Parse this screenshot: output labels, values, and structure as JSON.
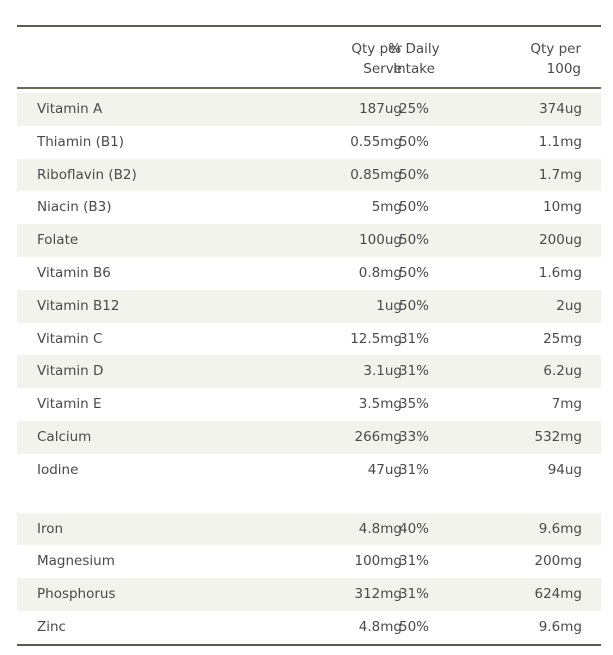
{
  "header": {
    "qty_serve_line1": "Qty per",
    "qty_serve_line2": "Serve",
    "daily_line1": "% Daily",
    "daily_line2": "Intake",
    "qty_100_line1": "Qty per",
    "qty_100_line2": "100g"
  },
  "group1": [
    {
      "name": "Vitamin A",
      "serve": "187ug",
      "pct": "25%",
      "per100": "374ug"
    },
    {
      "name": "Thiamin (B1)",
      "serve": "0.55mg",
      "pct": "50%",
      "per100": "1.1mg"
    },
    {
      "name": "Riboflavin (B2)",
      "serve": "0.85mg",
      "pct": "50%",
      "per100": "1.7mg"
    },
    {
      "name": "Niacin (B3)",
      "serve": "5mg",
      "pct": "50%",
      "per100": "10mg"
    },
    {
      "name": "Folate",
      "serve": "100ug",
      "pct": "50%",
      "per100": "200ug"
    },
    {
      "name": "Vitamin B6",
      "serve": "0.8mg",
      "pct": "50%",
      "per100": "1.6mg"
    },
    {
      "name": "Vitamin B12",
      "serve": "1ug",
      "pct": "50%",
      "per100": "2ug"
    },
    {
      "name": "Vitamin C",
      "serve": "12.5mg",
      "pct": "31%",
      "per100": "25mg"
    },
    {
      "name": "Vitamin D",
      "serve": "3.1ug",
      "pct": "31%",
      "per100": "6.2ug"
    },
    {
      "name": "Vitamin E",
      "serve": "3.5mg",
      "pct": "35%",
      "per100": "7mg"
    },
    {
      "name": "Calcium",
      "serve": "266mg",
      "pct": "33%",
      "per100": "532mg"
    },
    {
      "name": "Iodine",
      "serve": "47ug",
      "pct": "31%",
      "per100": "94ug"
    }
  ],
  "group2": [
    {
      "name": "Iron",
      "serve": "4.8mg",
      "pct": "40%",
      "per100": "9.6mg"
    },
    {
      "name": "Magnesium",
      "serve": "100mg",
      "pct": "31%",
      "per100": "200mg"
    },
    {
      "name": "Phosphorus",
      "serve": "312mg",
      "pct": "31%",
      "per100": "624mg"
    },
    {
      "name": "Zinc",
      "serve": "4.8mg",
      "pct": "50%",
      "per100": "9.6mg"
    }
  ]
}
